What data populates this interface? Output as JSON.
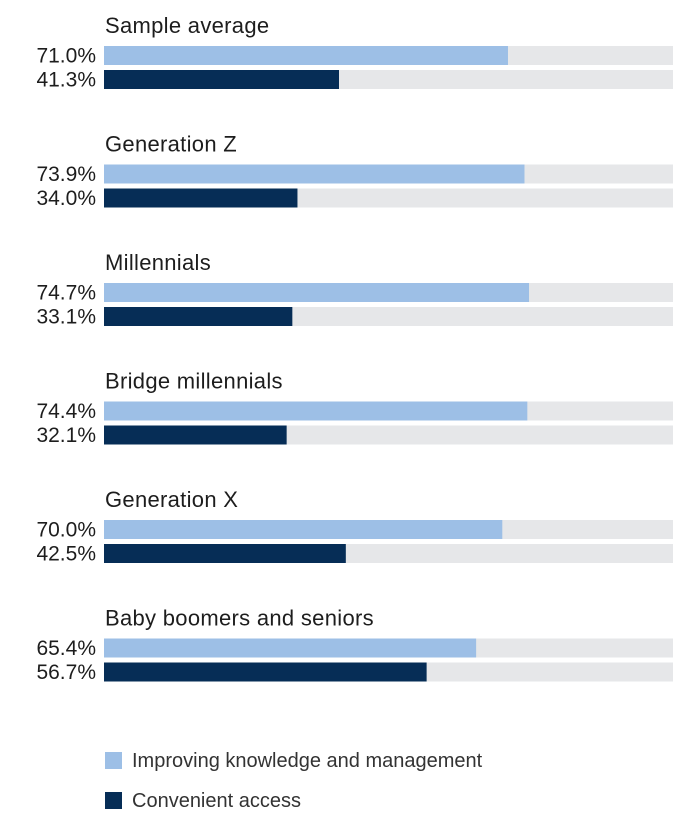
{
  "chart_data": {
    "type": "bar",
    "orientation": "horizontal",
    "xlim": [
      0,
      100
    ],
    "value_format": "percent",
    "categories": [
      "Sample average",
      "Generation Z",
      "Millennials",
      "Bridge millennials",
      "Generation X",
      "Baby boomers and seniors"
    ],
    "series": [
      {
        "name": "Improving knowledge and management",
        "color": "#9dbfe6",
        "values": [
          71.0,
          73.9,
          74.7,
          74.4,
          70.0,
          65.4
        ],
        "labels": [
          "71.0%",
          "73.9%",
          "74.7%",
          "74.4%",
          "70.0%",
          "65.4%"
        ]
      },
      {
        "name": "Convenient access",
        "color": "#062d56",
        "values": [
          41.3,
          34.0,
          33.1,
          32.1,
          42.5,
          56.7
        ],
        "labels": [
          "41.3%",
          "34.0%",
          "33.1%",
          "32.1%",
          "42.5%",
          "56.7%"
        ]
      }
    ],
    "track_color": "#e6e7e9",
    "legend_position": "bottom"
  }
}
